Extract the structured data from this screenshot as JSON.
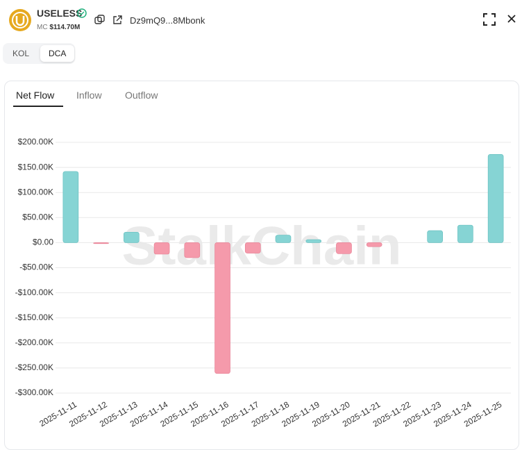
{
  "header": {
    "token": "USELESS",
    "market_cap_label": "MC",
    "market_cap": "$114.70M",
    "address": "Dz9mQ9...8Mbonk"
  },
  "toggle": {
    "options": [
      "KOL",
      "DCA"
    ],
    "selected": "DCA"
  },
  "tabs": {
    "items": [
      "Net Flow",
      "Inflow",
      "Outflow"
    ],
    "selected": "Net Flow"
  },
  "chart_data": {
    "type": "bar",
    "watermark": "StalkChain",
    "categories": [
      "2025-11-11",
      "2025-11-12",
      "2025-11-13",
      "2025-11-14",
      "2025-11-15",
      "2025-11-16",
      "2025-11-17",
      "2025-11-18",
      "2025-11-19",
      "2025-11-20",
      "2025-11-21",
      "2025-11-22",
      "2025-11-23",
      "2025-11-24",
      "2025-11-25"
    ],
    "values": [
      142000,
      -2000,
      21000,
      -23000,
      -30000,
      -261000,
      -21000,
      15000,
      6000,
      -22000,
      -8000,
      0,
      24000,
      35000,
      176000
    ],
    "positive_color": "#86d4d4",
    "negative_color": "#f59aab",
    "ylim": [
      -300000,
      200000
    ],
    "yticks": [
      {
        "value": -300000,
        "label": "-$300.00K"
      },
      {
        "value": -250000,
        "label": "-$250.00K"
      },
      {
        "value": -200000,
        "label": "-$200.00K"
      },
      {
        "value": -150000,
        "label": "-$150.00K"
      },
      {
        "value": -100000,
        "label": "-$100.00K"
      },
      {
        "value": -50000,
        "label": "-$50.00K"
      },
      {
        "value": 0,
        "label": "$0.00"
      },
      {
        "value": 50000,
        "label": "$50.00K"
      },
      {
        "value": 100000,
        "label": "$100.00K"
      },
      {
        "value": 150000,
        "label": "$150.00K"
      },
      {
        "value": 200000,
        "label": "$200.00K"
      }
    ],
    "grid": true
  }
}
